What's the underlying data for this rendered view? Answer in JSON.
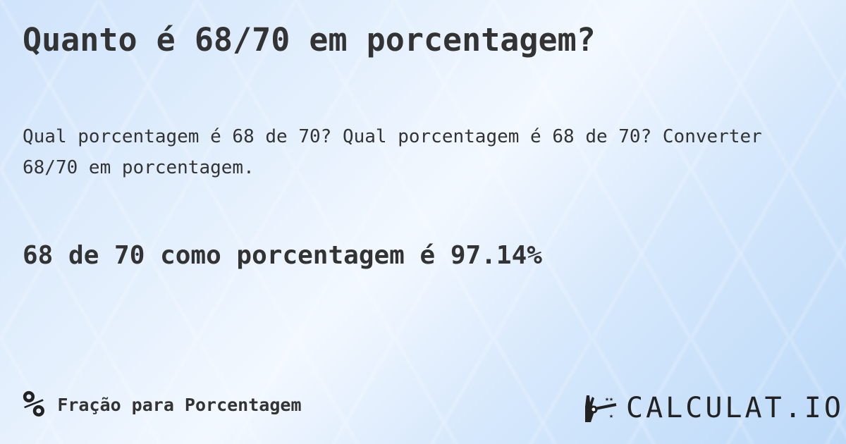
{
  "title": "Quanto é 68/70 em porcentagem?",
  "description": "Qual porcentagem é 68 de 70? Qual porcentagem é 68 de 70? Converter 68/70 em porcentagem.",
  "result": "68 de 70 como porcentagem é 97.14%",
  "category": {
    "icon": "percent-icon",
    "symbol": "%",
    "label": "Fração para Porcentagem"
  },
  "logo": {
    "text": "CALCULAT.IO",
    "icon": "magic-hand-icon"
  }
}
